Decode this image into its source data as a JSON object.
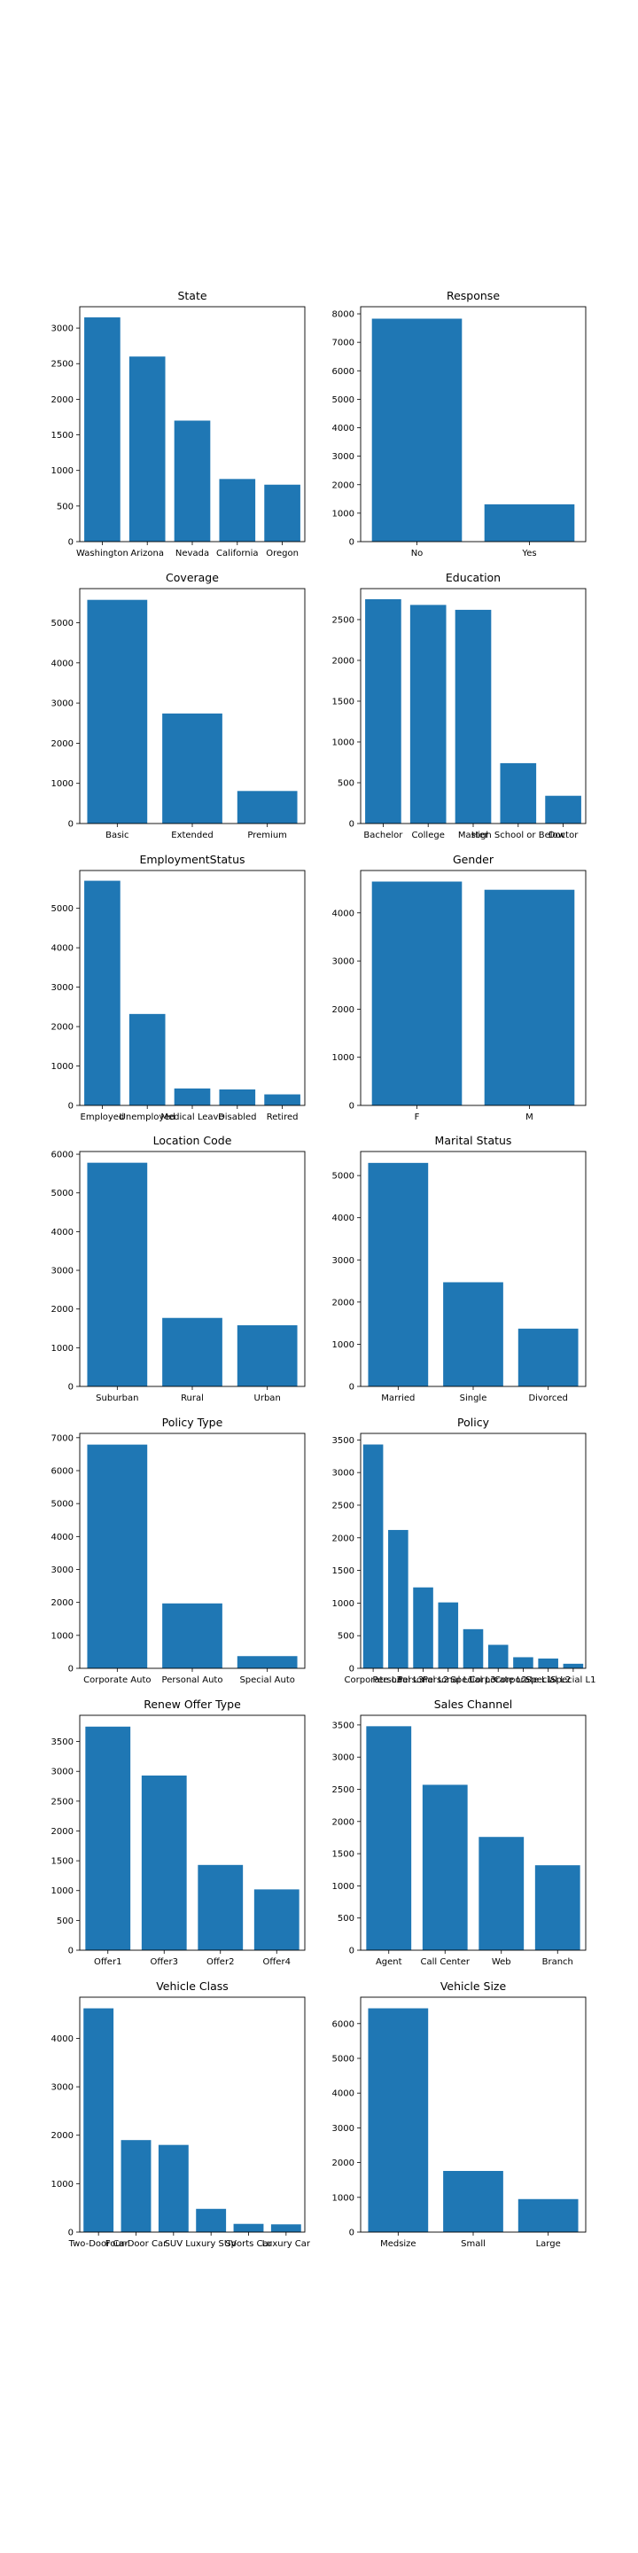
{
  "colors": {
    "bar": "#1f77b4",
    "axis": "#000000",
    "background": "#ffffff"
  },
  "chart_data": [
    {
      "type": "bar",
      "title": "State",
      "categories": [
        "Washington",
        "Arizona",
        "Nevada",
        "California",
        "Oregon"
      ],
      "values": [
        3150,
        2600,
        1700,
        880,
        800
      ],
      "ylim": [
        0,
        3300
      ],
      "yticks": [
        0,
        500,
        1000,
        1500,
        2000,
        2500,
        3000
      ],
      "grid": false
    },
    {
      "type": "bar",
      "title": "Response",
      "categories": [
        "No",
        "Yes"
      ],
      "values": [
        7830,
        1310
      ],
      "ylim": [
        0,
        8250
      ],
      "yticks": [
        0,
        1000,
        2000,
        3000,
        4000,
        5000,
        6000,
        7000,
        8000
      ],
      "grid": false
    },
    {
      "type": "bar",
      "title": "Coverage",
      "categories": [
        "Basic",
        "Extended",
        "Premium"
      ],
      "values": [
        5570,
        2740,
        810
      ],
      "ylim": [
        0,
        5850
      ],
      "yticks": [
        0,
        1000,
        2000,
        3000,
        4000,
        5000
      ],
      "grid": false
    },
    {
      "type": "bar",
      "title": "Education",
      "categories": [
        "Bachelor",
        "College",
        "Master",
        "High School or Below",
        "Doctor"
      ],
      "values": [
        2750,
        2680,
        2620,
        740,
        340
      ],
      "ylim": [
        0,
        2880
      ],
      "yticks": [
        0,
        500,
        1000,
        1500,
        2000,
        2500
      ],
      "grid": false
    },
    {
      "type": "bar",
      "title": "EmploymentStatus",
      "categories": [
        "Employed",
        "Unemployed",
        "Medical Leave",
        "Disabled",
        "Retired"
      ],
      "values": [
        5700,
        2320,
        430,
        405,
        280
      ],
      "ylim": [
        0,
        5960
      ],
      "yticks": [
        0,
        1000,
        2000,
        3000,
        4000,
        5000
      ],
      "grid": false
    },
    {
      "type": "bar",
      "title": "Gender",
      "categories": [
        "F",
        "M"
      ],
      "values": [
        4650,
        4480
      ],
      "ylim": [
        0,
        4880
      ],
      "yticks": [
        0,
        1000,
        2000,
        3000,
        4000
      ],
      "grid": false
    },
    {
      "type": "bar",
      "title": "Location Code",
      "categories": [
        "Suburban",
        "Rural",
        "Urban"
      ],
      "values": [
        5780,
        1770,
        1580
      ],
      "ylim": [
        0,
        6070
      ],
      "yticks": [
        0,
        1000,
        2000,
        3000,
        4000,
        5000,
        6000
      ],
      "grid": false
    },
    {
      "type": "bar",
      "title": "Marital Status",
      "categories": [
        "Married",
        "Single",
        "Divorced"
      ],
      "values": [
        5300,
        2470,
        1370
      ],
      "ylim": [
        0,
        5570
      ],
      "yticks": [
        0,
        1000,
        2000,
        3000,
        4000,
        5000
      ],
      "grid": false
    },
    {
      "type": "bar",
      "title": "Policy Type",
      "categories": [
        "Corporate Auto",
        "Personal Auto",
        "Special Auto"
      ],
      "values": [
        6790,
        1970,
        370
      ],
      "ylim": [
        0,
        7130
      ],
      "yticks": [
        0,
        1000,
        2000,
        3000,
        4000,
        5000,
        6000,
        7000
      ],
      "grid": false
    },
    {
      "type": "bar",
      "title": "Policy",
      "categories": [
        "Corporate L3",
        "Personal L3",
        "Personal L2",
        "Personal L1",
        "Special L3",
        "Corporate L2",
        "Corporate L1",
        "Special L2",
        "Special L1"
      ],
      "values": [
        3430,
        2120,
        1240,
        1010,
        600,
        360,
        170,
        150,
        70
      ],
      "ylim": [
        0,
        3600
      ],
      "yticks": [
        0,
        500,
        1000,
        1500,
        2000,
        2500,
        3000,
        3500
      ],
      "grid": false
    },
    {
      "type": "bar",
      "title": "Renew Offer Type",
      "categories": [
        "Offer1",
        "Offer3",
        "Offer2",
        "Offer4"
      ],
      "values": [
        3750,
        2930,
        1430,
        1020
      ],
      "ylim": [
        0,
        3940
      ],
      "yticks": [
        0,
        500,
        1000,
        1500,
        2000,
        2500,
        3000,
        3500
      ],
      "grid": false
    },
    {
      "type": "bar",
      "title": "Sales Channel",
      "categories": [
        "Agent",
        "Call Center",
        "Web",
        "Branch"
      ],
      "values": [
        3480,
        2570,
        1760,
        1320
      ],
      "ylim": [
        0,
        3650
      ],
      "yticks": [
        0,
        500,
        1000,
        1500,
        2000,
        2500,
        3000,
        3500
      ],
      "grid": false
    },
    {
      "type": "bar",
      "title": "Vehicle Class",
      "categories": [
        "Two-Door Car",
        "Four-Door Car",
        "SUV",
        "Luxury SUV",
        "Sports Car",
        "Luxury Car"
      ],
      "values": [
        4620,
        1900,
        1800,
        480,
        170,
        160
      ],
      "ylim": [
        0,
        4850
      ],
      "yticks": [
        0,
        1000,
        2000,
        3000,
        4000
      ],
      "grid": false
    },
    {
      "type": "bar",
      "title": "Vehicle Size",
      "categories": [
        "Medsize",
        "Small",
        "Large"
      ],
      "values": [
        6440,
        1760,
        950
      ],
      "ylim": [
        0,
        6760
      ],
      "yticks": [
        0,
        1000,
        2000,
        3000,
        4000,
        5000,
        6000
      ],
      "grid": false
    }
  ]
}
